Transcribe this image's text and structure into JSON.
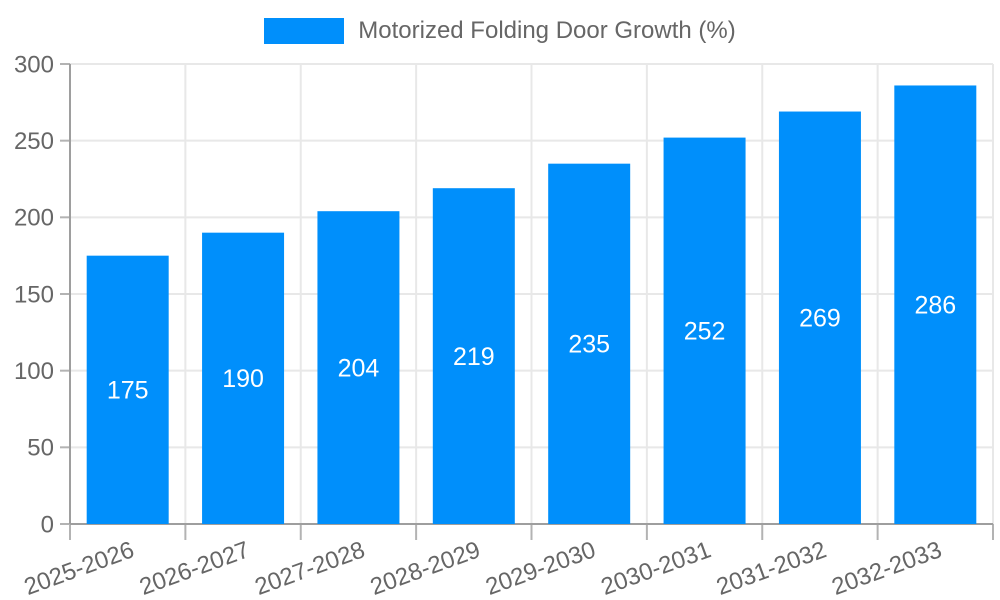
{
  "chart_data": {
    "type": "bar",
    "title": "",
    "xlabel": "",
    "ylabel": "",
    "categories": [
      "2025-2026",
      "2026-2027",
      "2027-2028",
      "2028-2029",
      "2029-2030",
      "2030-2031",
      "2031-2032",
      "2032-2033"
    ],
    "series": [
      {
        "name": "Motorized Folding Door Growth (%)",
        "values": [
          175,
          190,
          204,
          219,
          235,
          252,
          269,
          286
        ]
      }
    ],
    "ylim": [
      0,
      300
    ],
    "yticks": [
      0,
      50,
      100,
      150,
      200,
      250,
      300
    ],
    "grid": true,
    "legend_position": "top",
    "x_label_rotation": -20,
    "value_label_placement": "inside-center",
    "colors": {
      "bar": "#008FFB",
      "value_label": "#FFFFFF",
      "axis_text": "#666666",
      "grid_line": "#E8E8E8",
      "axis_line": "#9E9E9E",
      "tick_mark": "#B3B3B3",
      "background": "#FFFFFF"
    }
  }
}
